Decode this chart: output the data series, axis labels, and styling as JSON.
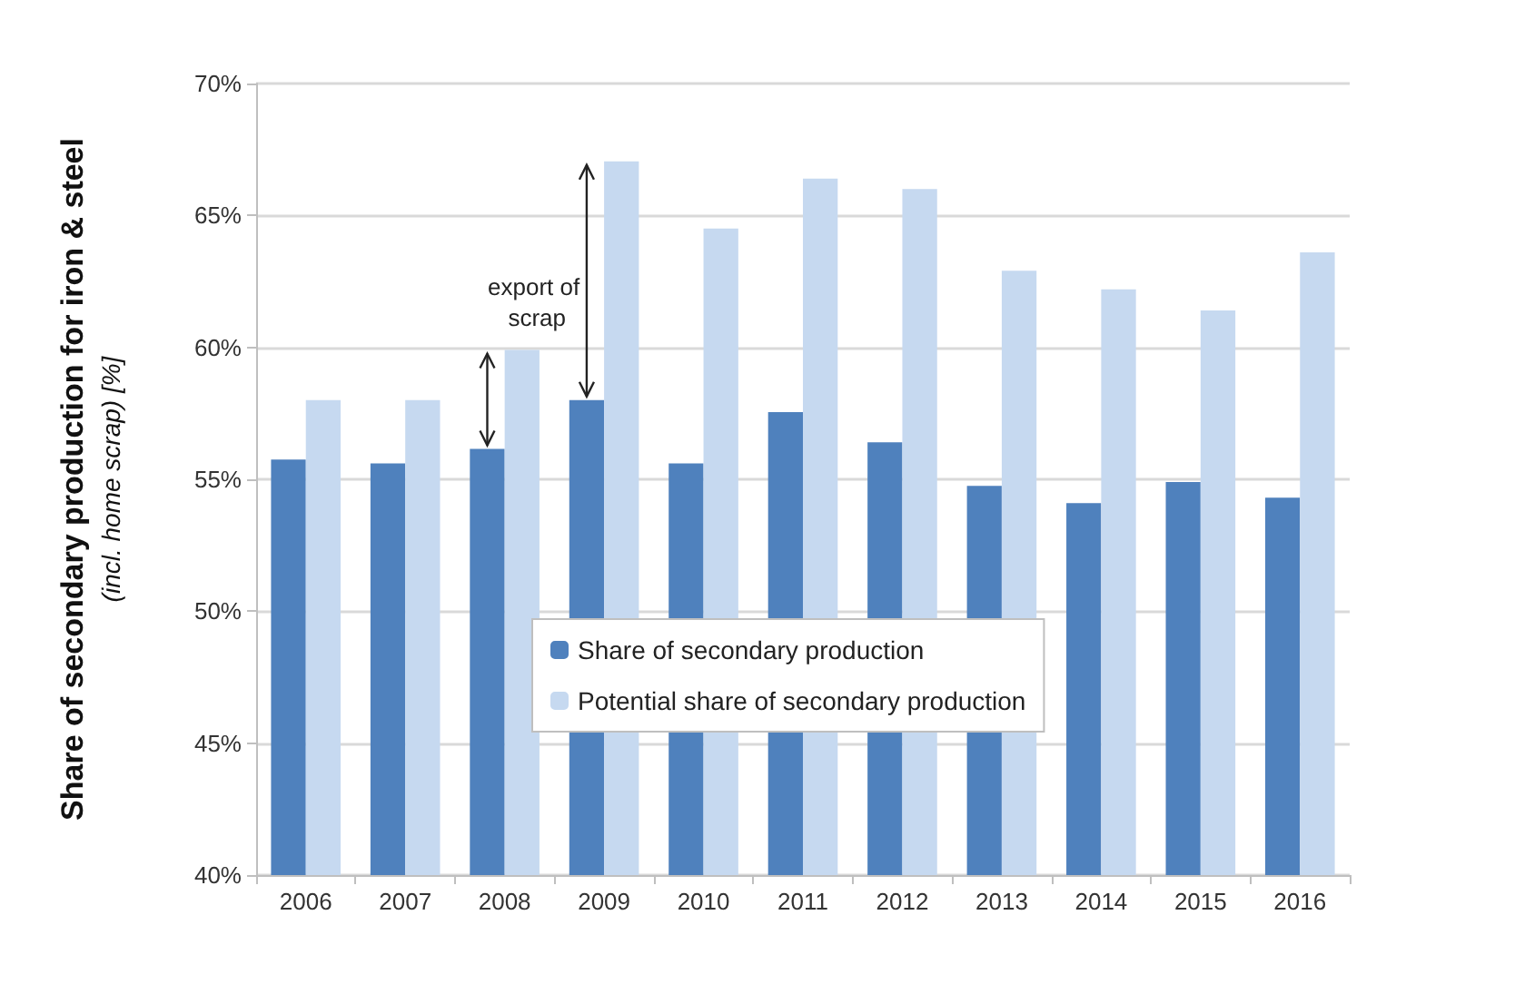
{
  "chart_data": {
    "type": "bar",
    "ylabel": "Share of secondary production for iron & steel\n(incl. home scrap) [%]",
    "categories": [
      "2006",
      "2007",
      "2008",
      "2009",
      "2010",
      "2011",
      "2012",
      "2013",
      "2014",
      "2015",
      "2016"
    ],
    "series": [
      {
        "name": "Share of secondary production",
        "color": "#4f81bd",
        "values": [
          55.75,
          55.6,
          56.15,
          58.0,
          55.6,
          57.55,
          56.4,
          54.75,
          54.1,
          54.9,
          54.3
        ]
      },
      {
        "name": "Potential share of secondary production",
        "color": "#c6d9f0",
        "values": [
          58.0,
          58.0,
          59.9,
          67.05,
          64.5,
          66.4,
          66.0,
          62.9,
          62.2,
          61.4,
          63.6
        ]
      }
    ],
    "ylim": [
      40,
      70
    ],
    "yticks": [
      {
        "value": 40,
        "label": "40%"
      },
      {
        "value": 45,
        "label": "45%"
      },
      {
        "value": 50,
        "label": "50%"
      },
      {
        "value": 55,
        "label": "55%"
      },
      {
        "value": 60,
        "label": "60%"
      },
      {
        "value": 65,
        "label": "65%"
      },
      {
        "value": 70,
        "label": "70%"
      }
    ],
    "annotations": [
      {
        "text": "export of scrap",
        "x": "2008",
        "y": 60
      }
    ],
    "grid": "y",
    "legend": "center"
  }
}
